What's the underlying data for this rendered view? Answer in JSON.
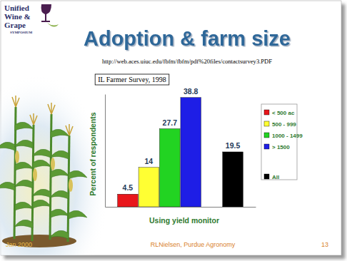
{
  "chart_data": {
    "type": "bar",
    "title": "Adoption & farm size",
    "subtitle": "http://web.aces.uiuc.edu/fbfm/fbfm/pdf%20files/contactsurvey3.PDF",
    "annotations": [
      "IL Farmer Survey, 1998"
    ],
    "x_label": "Using yield monitor",
    "y_label": "Percent of respondents",
    "categories": [
      "< 500 ac",
      "500 - 999",
      "1000 - 1499",
      "> 1500",
      "All"
    ],
    "values": [
      4.5,
      14,
      27.7,
      38.8,
      19.5
    ],
    "colors": [
      "#e8161b",
      "#ffff33",
      "#22d322",
      "#1e1ee6",
      "#000000"
    ],
    "ylim": [
      0,
      40
    ],
    "data_labels": true,
    "tick_labels": false,
    "legend": "right"
  },
  "slide": {
    "logo": [
      "Unified",
      "Wine &",
      "Grape",
      "SYMPOSIUM"
    ],
    "footer": [
      "Jan 2000",
      "RLNielsen, Purdue Agronomy",
      "13"
    ]
  }
}
